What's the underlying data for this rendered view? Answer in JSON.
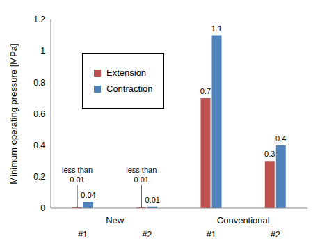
{
  "chart_data": {
    "type": "bar",
    "y_label": "Minimum operating pressure  [MPa]",
    "categories": [
      "#1",
      "#2",
      "#1",
      "#2"
    ],
    "category_groups": [
      "New",
      "Conventional"
    ],
    "series": [
      {
        "name": "Extension",
        "color": "#c0504d",
        "values": [
          0.005,
          0.005,
          0.7,
          0.3
        ],
        "value_labels": [
          "less than 0.01",
          "less than 0.01",
          "0.7",
          "0.3"
        ]
      },
      {
        "name": "Contraction",
        "color": "#4f81bd",
        "values": [
          0.04,
          0.01,
          1.1,
          0.4
        ],
        "value_labels": [
          "0.04",
          "0.01",
          "1.1",
          "0.4"
        ]
      }
    ],
    "ylim": [
      0,
      1.2
    ],
    "yticks": [
      0,
      0.2,
      0.4,
      0.6,
      0.8,
      1,
      1.2
    ],
    "grid": false,
    "legend": "upper left",
    "data_labels": true
  }
}
